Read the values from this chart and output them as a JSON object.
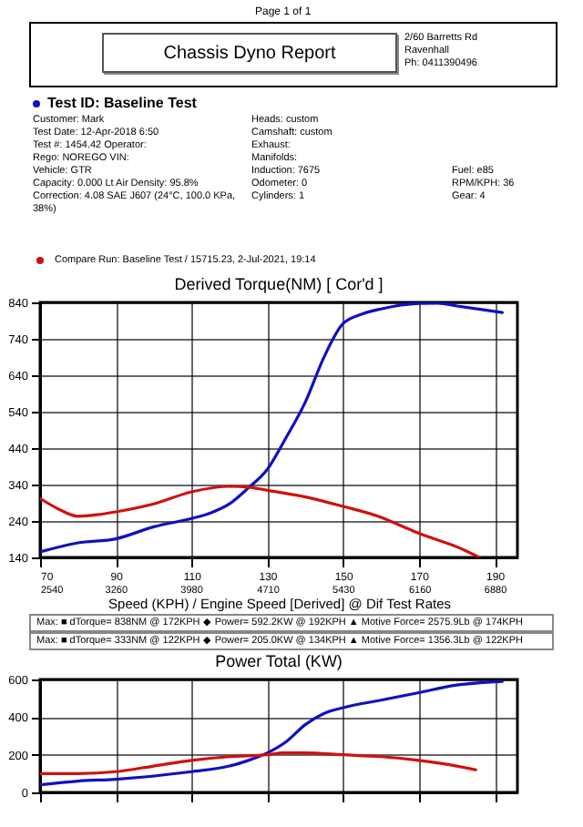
{
  "chart_data": [
    {
      "type": "other",
      "title": "Chassis Dyno Report",
      "subtitle": "Test ID: Baseline Test",
      "annotations": [
        "Page 1 of 1",
        "2/60 Barretts Rd",
        "Ravenhall",
        "Ph: 0411390496",
        "Customer: Mark",
        "Heads: custom",
        "Test Date: 12-Apr-2018 6:50",
        "Camshaft: custom",
        "Test #: 1454.42 Operator:",
        "Exhaust:",
        "Rego: NOREGO    VIN:",
        "Manifolds:",
        "Vehicle: GTR",
        "Induction: 7675",
        "Fuel: e85",
        "Capacity: 0.000 Lt    Air Density: 95.8%",
        "Odometer: 0",
        "RPM/KPH: 36",
        "Correction: 4.08 SAE J607 (24°C, 100.0 KPa, 38%)",
        "Cylinders: 1",
        "Gear: 4",
        "Compare Run:  Baseline Test / 15715.23,  2-Jul-2021,  19:14"
      ]
    },
    {
      "type": "line",
      "title": "Derived Torque(NM)     [ Cor'd ]",
      "xlabel": "Speed (KPH) / Engine Speed [Derived] @ Dif Test Rates",
      "xlim": [
        70,
        196
      ],
      "xticks": [
        70,
        90,
        110,
        130,
        150,
        170,
        190
      ],
      "x2lim": [
        2540,
        7097
      ],
      "x2ticks": [
        2540,
        3260,
        3980,
        4710,
        5430,
        6160,
        6880
      ],
      "ylim": [
        140,
        840
      ],
      "yticks": [
        140,
        240,
        340,
        440,
        540,
        640,
        740,
        840
      ],
      "grid": true,
      "line_style": "solid",
      "series": [
        {
          "color": "#1010c0",
          "x": [
            70,
            80,
            90,
            100,
            110,
            115,
            120,
            125,
            130,
            135,
            140,
            145,
            150,
            155,
            160,
            170,
            175,
            180,
            192
          ],
          "values": [
            155,
            180,
            191,
            224,
            247,
            262,
            287,
            331,
            382,
            470,
            566,
            691,
            782,
            808,
            822,
            837,
            838,
            830,
            812
          ]
        },
        {
          "color": "#d01010",
          "x": [
            70,
            75,
            80,
            85,
            90,
            100,
            110,
            120,
            125,
            130,
            140,
            150,
            160,
            165,
            170,
            180,
            186
          ],
          "values": [
            302,
            272,
            253,
            257,
            265,
            287,
            320,
            335,
            333,
            324,
            306,
            280,
            250,
            228,
            206,
            169,
            140
          ]
        }
      ],
      "annotations": [
        "Max:  ■ dTorque= 838NM @ 172KPH  ◆ Power= 592.2KW @ 192KPH  ▲ Motive Force= 2575.9Lb @ 174KPH",
        "Max:  ■ dTorque= 333NM @ 122KPH  ◆ Power= 205.0KW @ 134KPH  ▲ Motive Force= 1356.3Lb @ 122KPH"
      ]
    },
    {
      "type": "line",
      "title": "Power Total (KW)",
      "xlim": [
        70,
        196
      ],
      "xticks": [
        70,
        90,
        110,
        130,
        150,
        170,
        190
      ],
      "ylim": [
        0,
        600
      ],
      "yticks": [
        0,
        200,
        400,
        600
      ],
      "grid": true,
      "tick_labels": "y",
      "line_style": "solid",
      "series": [
        {
          "color": "#1010c0",
          "x": [
            70,
            80,
            90,
            110,
            120,
            125,
            130,
            135,
            140,
            145,
            150,
            160,
            170,
            180,
            192
          ],
          "values": [
            40,
            60,
            70,
            110,
            140,
            170,
            210,
            270,
            360,
            420,
            450,
            490,
            530,
            570,
            590
          ]
        },
        {
          "color": "#d01010",
          "x": [
            70,
            80,
            90,
            100,
            110,
            120,
            130,
            134,
            140,
            150,
            160,
            170,
            180,
            185
          ],
          "values": [
            100,
            100,
            110,
            140,
            170,
            190,
            200,
            210,
            210,
            200,
            190,
            170,
            140,
            120
          ]
        }
      ]
    }
  ]
}
